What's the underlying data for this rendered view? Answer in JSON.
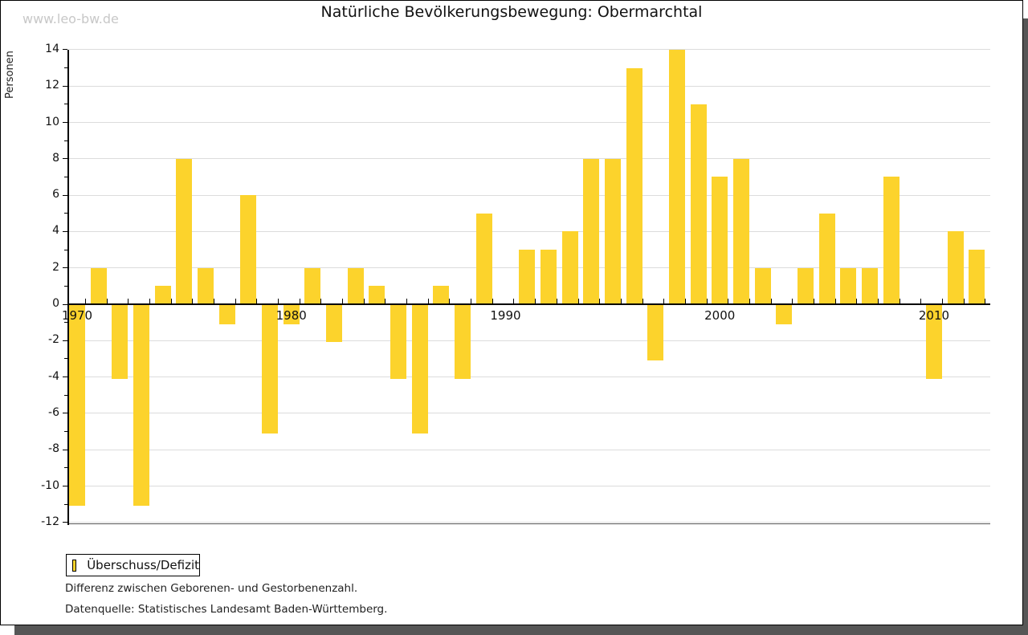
{
  "watermark": "www.leo-bw.de",
  "title": "Natürliche Bevölkerungsbewegung: Obermarchtal",
  "y_axis_label": "Personen",
  "legend": {
    "label": "Überschuss/Defizit"
  },
  "footnotes": {
    "line1": "Differenz zwischen Geborenen- und Gestorbenenzahl.",
    "line2": "Datenquelle: Statistisches Landesamt Baden-Württemberg."
  },
  "colors": {
    "bar": "#FCD32C",
    "grid": "#dcdcdc",
    "axis": "#000000",
    "watermark": "#c8c8c8",
    "shadow": "#565656"
  },
  "chart_data": {
    "type": "bar",
    "title": "Natürliche Bevölkerungsbewegung: Obermarchtal",
    "xlabel": "",
    "ylabel": "Personen",
    "ylim": [
      -12,
      14
    ],
    "ytick_step": 2,
    "grid": true,
    "legend_position": "bottom-left",
    "legend_entries": [
      "Überschuss/Defizit"
    ],
    "x_labeled_ticks": [
      1970,
      1980,
      1990,
      2000,
      2010
    ],
    "categories": [
      1970,
      1971,
      1972,
      1973,
      1974,
      1975,
      1976,
      1977,
      1978,
      1979,
      1980,
      1981,
      1982,
      1983,
      1984,
      1985,
      1986,
      1987,
      1988,
      1989,
      1990,
      1991,
      1992,
      1993,
      1994,
      1995,
      1996,
      1997,
      1998,
      1999,
      2000,
      2001,
      2002,
      2003,
      2004,
      2005,
      2006,
      2007,
      2008,
      2009,
      2010,
      2011,
      2012
    ],
    "values": [
      -11,
      2,
      -4,
      -11,
      1,
      8,
      2,
      -1,
      6,
      -7,
      -1,
      2,
      -2,
      2,
      1,
      -4,
      -7,
      1,
      -4,
      5,
      0,
      3,
      3,
      4,
      8,
      8,
      13,
      -3,
      14,
      11,
      7,
      8,
      2,
      -1,
      2,
      5,
      2,
      2,
      7,
      0,
      -4,
      4,
      3
    ]
  }
}
